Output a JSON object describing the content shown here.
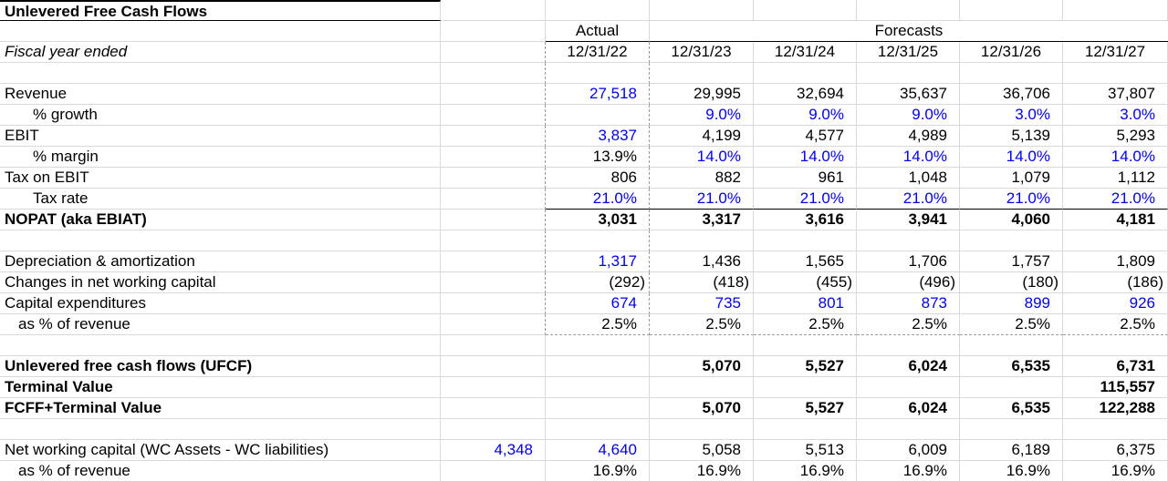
{
  "title": "Unlevered Free Cash Flows",
  "columns": {
    "fiscal_row_label": "Fiscal year ended",
    "actual_label": "Actual",
    "forecasts_label": "Forecasts",
    "dates": [
      "12/31/22",
      "12/31/23",
      "12/31/24",
      "12/31/25",
      "12/31/26",
      "12/31/27"
    ]
  },
  "colors": {
    "body": "#000000",
    "input": "#0000ee",
    "gridline": "#d9d9d9",
    "dashed_line": "#9a9a9a",
    "comment": "#ff0000"
  },
  "rows": [
    {
      "blank": true,
      "area": true
    },
    {
      "label": "Revenue",
      "indent": 0,
      "area": true,
      "values": [
        {
          "t": "27,518",
          "c": "input"
        },
        {
          "t": "29,995",
          "c": "body"
        },
        {
          "t": "32,694",
          "c": "body"
        },
        {
          "t": "35,637",
          "c": "body"
        },
        {
          "t": "36,706",
          "c": "body"
        },
        {
          "t": "37,807",
          "c": "body"
        }
      ]
    },
    {
      "label": "% growth",
      "indent": 1,
      "area": true,
      "values": [
        {
          "t": "",
          "c": "body"
        },
        {
          "t": "9.0%",
          "c": "input"
        },
        {
          "t": "9.0%",
          "c": "input"
        },
        {
          "t": "9.0%",
          "c": "input"
        },
        {
          "t": "3.0%",
          "c": "input"
        },
        {
          "t": "3.0%",
          "c": "input"
        }
      ]
    },
    {
      "label": "EBIT",
      "indent": 0,
      "area": true,
      "values": [
        {
          "t": "3,837",
          "c": "input"
        },
        {
          "t": "4,199",
          "c": "body"
        },
        {
          "t": "4,577",
          "c": "body"
        },
        {
          "t": "4,989",
          "c": "body"
        },
        {
          "t": "5,139",
          "c": "body"
        },
        {
          "t": "5,293",
          "c": "body"
        }
      ]
    },
    {
      "label": "% margin",
      "indent": 1,
      "area": true,
      "values": [
        {
          "t": "13.9%",
          "c": "body"
        },
        {
          "t": "14.0%",
          "c": "input"
        },
        {
          "t": "14.0%",
          "c": "input"
        },
        {
          "t": "14.0%",
          "c": "input"
        },
        {
          "t": "14.0%",
          "c": "input"
        },
        {
          "t": "14.0%",
          "c": "input"
        }
      ]
    },
    {
      "label": "Tax on EBIT",
      "indent": 0,
      "area": true,
      "values": [
        {
          "t": "806",
          "c": "body"
        },
        {
          "t": "882",
          "c": "body"
        },
        {
          "t": "961",
          "c": "body"
        },
        {
          "t": "1,048",
          "c": "body"
        },
        {
          "t": "1,079",
          "c": "body"
        },
        {
          "t": "1,112",
          "c": "body"
        }
      ]
    },
    {
      "label": "Tax rate",
      "indent": 1,
      "area": true,
      "blackBottom": true,
      "values": [
        {
          "t": "21.0%",
          "c": "input"
        },
        {
          "t": "21.0%",
          "c": "input"
        },
        {
          "t": "21.0%",
          "c": "input"
        },
        {
          "t": "21.0%",
          "c": "input"
        },
        {
          "t": "21.0%",
          "c": "input"
        },
        {
          "t": "21.0%",
          "c": "input"
        }
      ]
    },
    {
      "label": "NOPAT (aka EBIAT)",
      "indent": 0,
      "area": true,
      "bold": true,
      "comment": true,
      "values": [
        {
          "t": "3,031",
          "c": "body"
        },
        {
          "t": "3,317",
          "c": "body"
        },
        {
          "t": "3,616",
          "c": "body"
        },
        {
          "t": "3,941",
          "c": "body"
        },
        {
          "t": "4,060",
          "c": "body"
        },
        {
          "t": "4,181",
          "c": "body"
        }
      ]
    },
    {
      "blank": true,
      "area": true
    },
    {
      "label": "Depreciation & amortization",
      "indent": 0,
      "area": true,
      "values": [
        {
          "t": "1,317",
          "c": "input"
        },
        {
          "t": "1,436",
          "c": "body"
        },
        {
          "t": "1,565",
          "c": "body"
        },
        {
          "t": "1,706",
          "c": "body"
        },
        {
          "t": "1,757",
          "c": "body"
        },
        {
          "t": "1,809",
          "c": "body"
        }
      ]
    },
    {
      "label": "Changes in net working capital",
      "indent": 0,
      "area": true,
      "values": [
        {
          "t": "(292)",
          "c": "body"
        },
        {
          "t": "(418)",
          "c": "body"
        },
        {
          "t": "(455)",
          "c": "body"
        },
        {
          "t": "(496)",
          "c": "body"
        },
        {
          "t": "(180)",
          "c": "body"
        },
        {
          "t": "(186)",
          "c": "body"
        }
      ]
    },
    {
      "label": "Capital expenditures",
      "indent": 0,
      "area": true,
      "values": [
        {
          "t": "674",
          "c": "input"
        },
        {
          "t": "735",
          "c": "input"
        },
        {
          "t": "801",
          "c": "input"
        },
        {
          "t": "873",
          "c": "input"
        },
        {
          "t": "899",
          "c": "input"
        },
        {
          "t": "926",
          "c": "input"
        }
      ]
    },
    {
      "label": "as % of revenue",
      "indent": 2,
      "area": true,
      "dashedBottom": true,
      "values": [
        {
          "t": "2.5%",
          "c": "body"
        },
        {
          "t": "2.5%",
          "c": "body"
        },
        {
          "t": "2.5%",
          "c": "body"
        },
        {
          "t": "2.5%",
          "c": "body"
        },
        {
          "t": "2.5%",
          "c": "body"
        },
        {
          "t": "2.5%",
          "c": "body"
        }
      ]
    },
    {
      "blank": true
    },
    {
      "label": "Unlevered free cash flows (UFCF)",
      "indent": 0,
      "bold": true,
      "values": [
        {
          "t": "",
          "c": "body"
        },
        {
          "t": "5,070",
          "c": "body"
        },
        {
          "t": "5,527",
          "c": "body"
        },
        {
          "t": "6,024",
          "c": "body"
        },
        {
          "t": "6,535",
          "c": "body"
        },
        {
          "t": "6,731",
          "c": "body"
        }
      ]
    },
    {
      "label": "Terminal Value",
      "indent": 0,
      "bold": true,
      "values": [
        {
          "t": "",
          "c": "body"
        },
        {
          "t": "",
          "c": "body"
        },
        {
          "t": "",
          "c": "body"
        },
        {
          "t": "",
          "c": "body"
        },
        {
          "t": "",
          "c": "body"
        },
        {
          "t": "115,557",
          "c": "body"
        }
      ]
    },
    {
      "label": "FCFF+Terminal Value",
      "indent": 0,
      "bold": true,
      "values": [
        {
          "t": "",
          "c": "body"
        },
        {
          "t": "5,070",
          "c": "body"
        },
        {
          "t": "5,527",
          "c": "body"
        },
        {
          "t": "6,024",
          "c": "body"
        },
        {
          "t": "6,535",
          "c": "body"
        },
        {
          "t": "122,288",
          "c": "body"
        }
      ]
    },
    {
      "blank": true
    },
    {
      "label": "Net working capital (WC Assets - WC liabilities)",
      "indent": 0,
      "b": {
        "t": "4,348",
        "c": "input"
      },
      "values": [
        {
          "t": "4,640",
          "c": "input"
        },
        {
          "t": "5,058",
          "c": "body"
        },
        {
          "t": "5,513",
          "c": "body"
        },
        {
          "t": "6,009",
          "c": "body"
        },
        {
          "t": "6,189",
          "c": "body"
        },
        {
          "t": "6,375",
          "c": "body"
        }
      ]
    },
    {
      "label": "as % of revenue",
      "indent": 2,
      "values": [
        {
          "t": "16.9%",
          "c": "body"
        },
        {
          "t": "16.9%",
          "c": "body"
        },
        {
          "t": "16.9%",
          "c": "body"
        },
        {
          "t": "16.9%",
          "c": "body"
        },
        {
          "t": "16.9%",
          "c": "body"
        },
        {
          "t": "16.9%",
          "c": "body"
        }
      ]
    }
  ]
}
